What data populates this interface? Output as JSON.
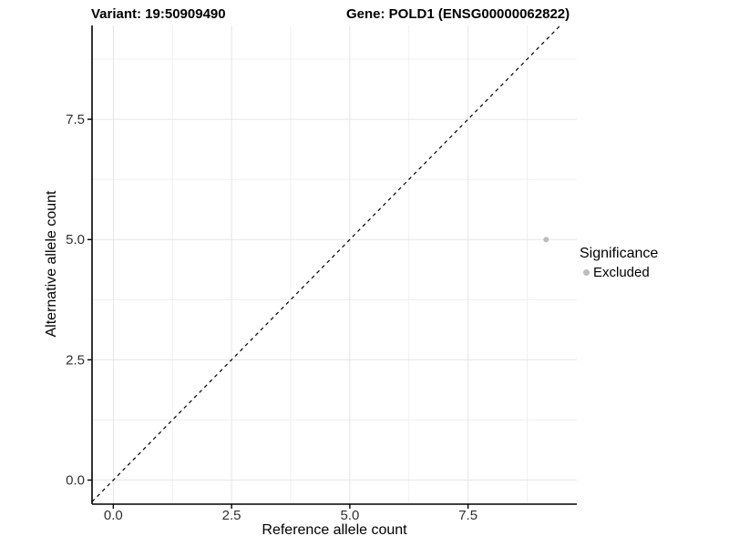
{
  "chart_data": {
    "type": "scatter",
    "title_left": "Variant: 19:50909490",
    "title_right": "Gene: POLD1 (ENSG00000062822)",
    "xlabel": "Reference allele count",
    "ylabel": "Alternative allele count",
    "xlim": [
      -0.45,
      9.8
    ],
    "ylim": [
      -0.5,
      9.45
    ],
    "x_major_ticks": [
      0,
      2.5,
      5,
      7.5
    ],
    "x_tick_labels": [
      "0.0",
      "2.5",
      "5.0",
      "7.5"
    ],
    "y_major_ticks": [
      0,
      2.5,
      5,
      7.5
    ],
    "y_tick_labels": [
      "0.0",
      "2.5",
      "5.0",
      "7.5"
    ],
    "x_minor_ticks": [
      1.25,
      3.75,
      6.25,
      8.75
    ],
    "y_minor_ticks": [
      1.25,
      3.75,
      6.25,
      8.75
    ],
    "grid": true,
    "reference_line": {
      "type": "identity",
      "slope": 1,
      "intercept": 0,
      "style": "dashed",
      "color": "#000000"
    },
    "series": [
      {
        "name": "Excluded",
        "color": "#bdbdbd",
        "points": [
          {
            "x": 9.15,
            "y": 5.0
          }
        ]
      }
    ],
    "legend": {
      "title": "Significance",
      "position": "right",
      "entries": [
        {
          "label": "Excluded",
          "color": "#bdbdbd"
        }
      ]
    },
    "colors": {
      "background": "#ffffff",
      "grid_major": "#e5e5e5",
      "grid_minor": "#f0f0f0",
      "axis": "#000000",
      "tick_text": "#303030"
    }
  }
}
